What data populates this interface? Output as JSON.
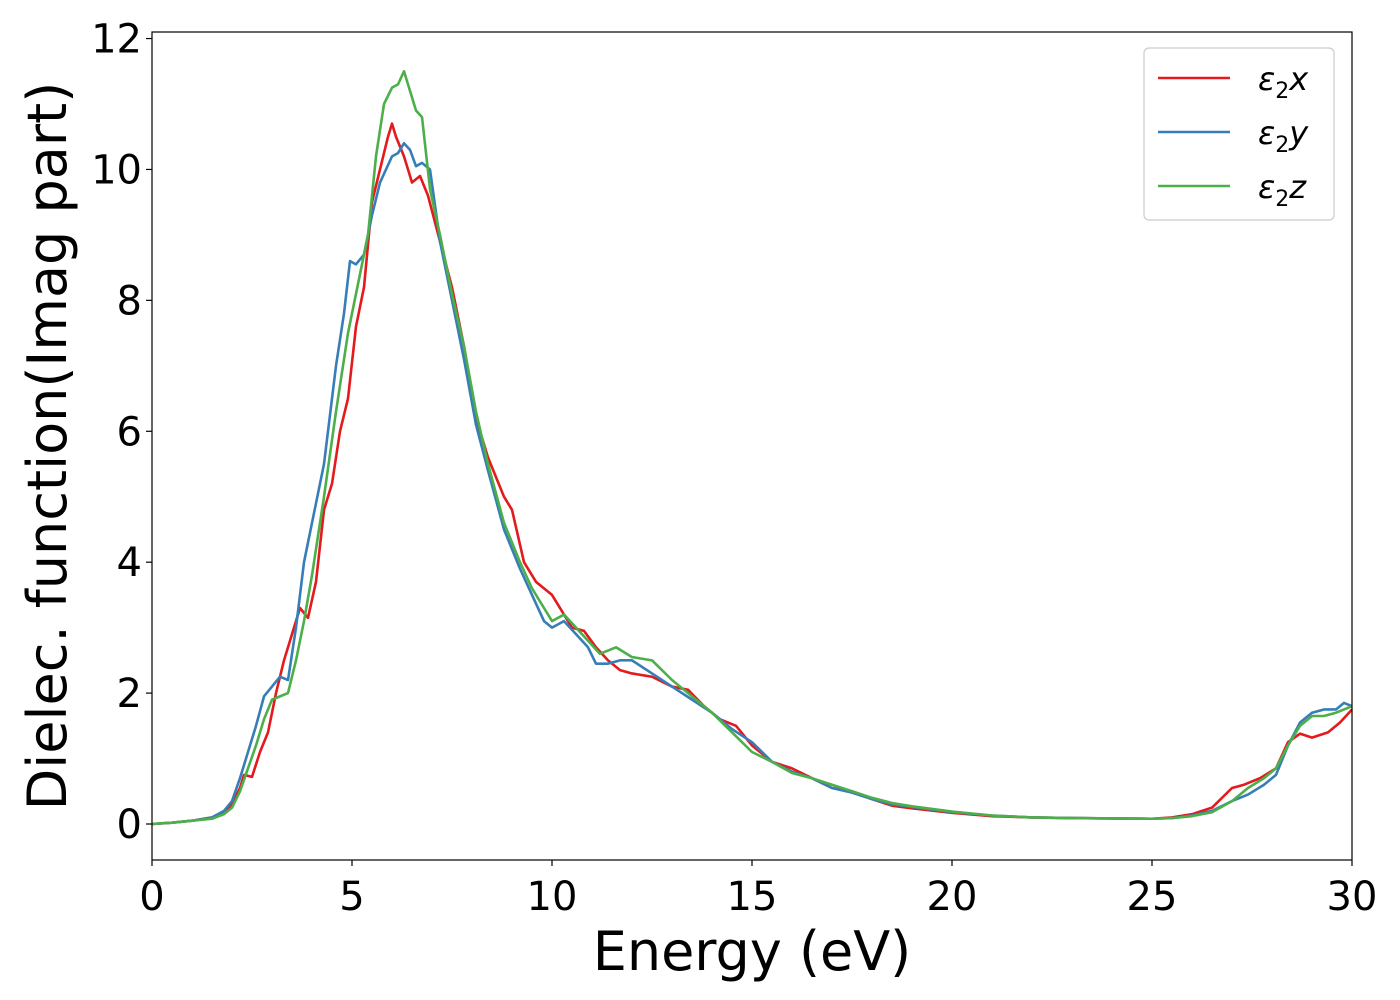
{
  "chart_data": {
    "type": "line",
    "title": "",
    "xlabel": "Energy (eV)",
    "ylabel": "Dielec. function(Imag part)",
    "xlim": [
      0,
      30
    ],
    "ylim": [
      -0.55,
      12.1
    ],
    "xticks": [
      0,
      5,
      10,
      15,
      20,
      25,
      30
    ],
    "yticks": [
      0,
      2,
      4,
      6,
      8,
      10,
      12
    ],
    "grid": false,
    "legend_position": "top-right",
    "series": [
      {
        "name": "ε2x",
        "legend_base": "ε",
        "legend_sub": "2",
        "legend_var": "x",
        "color": "#e41a1c",
        "points": [
          [
            0,
            0
          ],
          [
            0.5,
            0.02
          ],
          [
            1,
            0.05
          ],
          [
            1.5,
            0.1
          ],
          [
            1.8,
            0.18
          ],
          [
            2,
            0.3
          ],
          [
            2.2,
            0.55
          ],
          [
            2.3,
            0.75
          ],
          [
            2.5,
            0.72
          ],
          [
            2.7,
            1.1
          ],
          [
            2.9,
            1.4
          ],
          [
            3.1,
            2.0
          ],
          [
            3.3,
            2.5
          ],
          [
            3.5,
            2.9
          ],
          [
            3.7,
            3.3
          ],
          [
            3.9,
            3.15
          ],
          [
            4.1,
            3.7
          ],
          [
            4.3,
            4.8
          ],
          [
            4.5,
            5.2
          ],
          [
            4.7,
            6.0
          ],
          [
            4.9,
            6.5
          ],
          [
            5.1,
            7.6
          ],
          [
            5.3,
            8.2
          ],
          [
            5.5,
            9.5
          ],
          [
            5.7,
            10.0
          ],
          [
            5.9,
            10.5
          ],
          [
            6.0,
            10.7
          ],
          [
            6.1,
            10.5
          ],
          [
            6.3,
            10.2
          ],
          [
            6.5,
            9.8
          ],
          [
            6.7,
            9.9
          ],
          [
            6.9,
            9.6
          ],
          [
            7.2,
            8.9
          ],
          [
            7.5,
            8.2
          ],
          [
            7.8,
            7.3
          ],
          [
            8.1,
            6.2
          ],
          [
            8.4,
            5.6
          ],
          [
            8.8,
            5.0
          ],
          [
            9.0,
            4.8
          ],
          [
            9.3,
            4.0
          ],
          [
            9.6,
            3.7
          ],
          [
            10,
            3.5
          ],
          [
            10.3,
            3.2
          ],
          [
            10.5,
            3.0
          ],
          [
            10.8,
            2.95
          ],
          [
            11.1,
            2.7
          ],
          [
            11.4,
            2.5
          ],
          [
            11.7,
            2.35
          ],
          [
            12,
            2.3
          ],
          [
            12.5,
            2.25
          ],
          [
            13,
            2.1
          ],
          [
            13.4,
            2.05
          ],
          [
            13.8,
            1.8
          ],
          [
            14.2,
            1.6
          ],
          [
            14.6,
            1.5
          ],
          [
            15,
            1.2
          ],
          [
            15.5,
            0.95
          ],
          [
            16,
            0.85
          ],
          [
            16.5,
            0.7
          ],
          [
            17,
            0.55
          ],
          [
            17.5,
            0.5
          ],
          [
            18,
            0.38
          ],
          [
            18.5,
            0.28
          ],
          [
            19,
            0.24
          ],
          [
            20,
            0.17
          ],
          [
            21,
            0.12
          ],
          [
            22,
            0.1
          ],
          [
            23,
            0.09
          ],
          [
            24,
            0.085
          ],
          [
            25,
            0.08
          ],
          [
            25.5,
            0.1
          ],
          [
            26,
            0.15
          ],
          [
            26.5,
            0.25
          ],
          [
            27,
            0.55
          ],
          [
            27.3,
            0.6
          ],
          [
            27.7,
            0.7
          ],
          [
            28.1,
            0.85
          ],
          [
            28.4,
            1.25
          ],
          [
            28.7,
            1.38
          ],
          [
            29.0,
            1.32
          ],
          [
            29.4,
            1.4
          ],
          [
            29.7,
            1.55
          ],
          [
            30,
            1.75
          ]
        ]
      },
      {
        "name": "ε2y",
        "legend_base": "ε",
        "legend_sub": "2",
        "legend_var": "y",
        "color": "#377eb8",
        "points": [
          [
            0,
            0
          ],
          [
            0.5,
            0.02
          ],
          [
            1,
            0.05
          ],
          [
            1.5,
            0.1
          ],
          [
            1.8,
            0.2
          ],
          [
            2,
            0.35
          ],
          [
            2.2,
            0.7
          ],
          [
            2.4,
            1.1
          ],
          [
            2.6,
            1.5
          ],
          [
            2.8,
            1.95
          ],
          [
            3.0,
            2.1
          ],
          [
            3.2,
            2.25
          ],
          [
            3.4,
            2.2
          ],
          [
            3.6,
            3.0
          ],
          [
            3.8,
            4.0
          ],
          [
            4.0,
            4.6
          ],
          [
            4.3,
            5.5
          ],
          [
            4.6,
            7.0
          ],
          [
            4.8,
            7.8
          ],
          [
            4.95,
            8.6
          ],
          [
            5.1,
            8.55
          ],
          [
            5.3,
            8.7
          ],
          [
            5.5,
            9.3
          ],
          [
            5.7,
            9.8
          ],
          [
            6.0,
            10.2
          ],
          [
            6.15,
            10.25
          ],
          [
            6.3,
            10.4
          ],
          [
            6.45,
            10.3
          ],
          [
            6.6,
            10.05
          ],
          [
            6.75,
            10.1
          ],
          [
            6.95,
            10.0
          ],
          [
            7.2,
            8.9
          ],
          [
            7.5,
            8.0
          ],
          [
            7.8,
            7.1
          ],
          [
            8.1,
            6.1
          ],
          [
            8.4,
            5.4
          ],
          [
            8.8,
            4.5
          ],
          [
            9.2,
            3.9
          ],
          [
            9.5,
            3.5
          ],
          [
            9.8,
            3.1
          ],
          [
            10,
            3.0
          ],
          [
            10.3,
            3.1
          ],
          [
            10.6,
            2.9
          ],
          [
            10.9,
            2.7
          ],
          [
            11.1,
            2.45
          ],
          [
            11.4,
            2.45
          ],
          [
            11.7,
            2.5
          ],
          [
            12,
            2.5
          ],
          [
            12.5,
            2.3
          ],
          [
            13,
            2.1
          ],
          [
            13.5,
            1.9
          ],
          [
            14,
            1.7
          ],
          [
            14.5,
            1.45
          ],
          [
            15,
            1.25
          ],
          [
            15.5,
            0.95
          ],
          [
            16,
            0.8
          ],
          [
            16.5,
            0.7
          ],
          [
            17,
            0.55
          ],
          [
            17.5,
            0.48
          ],
          [
            18,
            0.38
          ],
          [
            18.5,
            0.3
          ],
          [
            19,
            0.26
          ],
          [
            20,
            0.18
          ],
          [
            21,
            0.13
          ],
          [
            22,
            0.1
          ],
          [
            23,
            0.09
          ],
          [
            24,
            0.085
          ],
          [
            25,
            0.08
          ],
          [
            25.5,
            0.09
          ],
          [
            26,
            0.13
          ],
          [
            26.5,
            0.2
          ],
          [
            27,
            0.35
          ],
          [
            27.4,
            0.45
          ],
          [
            27.8,
            0.6
          ],
          [
            28.1,
            0.75
          ],
          [
            28.4,
            1.2
          ],
          [
            28.7,
            1.55
          ],
          [
            29.0,
            1.7
          ],
          [
            29.3,
            1.75
          ],
          [
            29.6,
            1.75
          ],
          [
            29.8,
            1.85
          ],
          [
            30,
            1.8
          ]
        ]
      },
      {
        "name": "ε2z",
        "legend_base": "ε",
        "legend_sub": "2",
        "legend_var": "z",
        "color": "#4daf4a",
        "points": [
          [
            0,
            0
          ],
          [
            0.5,
            0.02
          ],
          [
            1,
            0.05
          ],
          [
            1.5,
            0.08
          ],
          [
            1.8,
            0.15
          ],
          [
            2,
            0.25
          ],
          [
            2.2,
            0.5
          ],
          [
            2.4,
            0.85
          ],
          [
            2.6,
            1.2
          ],
          [
            2.8,
            1.6
          ],
          [
            3.0,
            1.9
          ],
          [
            3.2,
            1.95
          ],
          [
            3.4,
            2.0
          ],
          [
            3.6,
            2.5
          ],
          [
            3.8,
            3.1
          ],
          [
            4.0,
            3.8
          ],
          [
            4.3,
            5.0
          ],
          [
            4.6,
            6.3
          ],
          [
            4.9,
            7.5
          ],
          [
            5.2,
            8.4
          ],
          [
            5.4,
            9.0
          ],
          [
            5.6,
            10.2
          ],
          [
            5.8,
            11.0
          ],
          [
            6.0,
            11.25
          ],
          [
            6.15,
            11.3
          ],
          [
            6.3,
            11.5
          ],
          [
            6.45,
            11.2
          ],
          [
            6.6,
            10.9
          ],
          [
            6.75,
            10.8
          ],
          [
            6.95,
            9.7
          ],
          [
            7.2,
            9.0
          ],
          [
            7.5,
            8.1
          ],
          [
            7.8,
            7.3
          ],
          [
            8.1,
            6.3
          ],
          [
            8.4,
            5.5
          ],
          [
            8.8,
            4.6
          ],
          [
            9.2,
            4.0
          ],
          [
            9.5,
            3.6
          ],
          [
            9.8,
            3.3
          ],
          [
            10.0,
            3.1
          ],
          [
            10.3,
            3.2
          ],
          [
            10.6,
            3.0
          ],
          [
            10.9,
            2.8
          ],
          [
            11.2,
            2.6
          ],
          [
            11.6,
            2.7
          ],
          [
            12,
            2.55
          ],
          [
            12.5,
            2.5
          ],
          [
            13,
            2.2
          ],
          [
            13.5,
            1.95
          ],
          [
            14,
            1.7
          ],
          [
            14.5,
            1.4
          ],
          [
            15,
            1.1
          ],
          [
            15.5,
            0.95
          ],
          [
            16,
            0.78
          ],
          [
            16.5,
            0.7
          ],
          [
            17,
            0.6
          ],
          [
            17.5,
            0.5
          ],
          [
            18,
            0.4
          ],
          [
            18.5,
            0.32
          ],
          [
            19,
            0.27
          ],
          [
            20,
            0.19
          ],
          [
            21,
            0.13
          ],
          [
            22,
            0.1
          ],
          [
            23,
            0.09
          ],
          [
            24,
            0.085
          ],
          [
            25,
            0.08
          ],
          [
            25.5,
            0.09
          ],
          [
            26,
            0.12
          ],
          [
            26.5,
            0.18
          ],
          [
            27,
            0.35
          ],
          [
            27.4,
            0.55
          ],
          [
            27.8,
            0.7
          ],
          [
            28.1,
            0.85
          ],
          [
            28.4,
            1.2
          ],
          [
            28.7,
            1.5
          ],
          [
            29.0,
            1.65
          ],
          [
            29.3,
            1.65
          ],
          [
            29.6,
            1.7
          ],
          [
            30,
            1.8
          ]
        ]
      }
    ]
  }
}
